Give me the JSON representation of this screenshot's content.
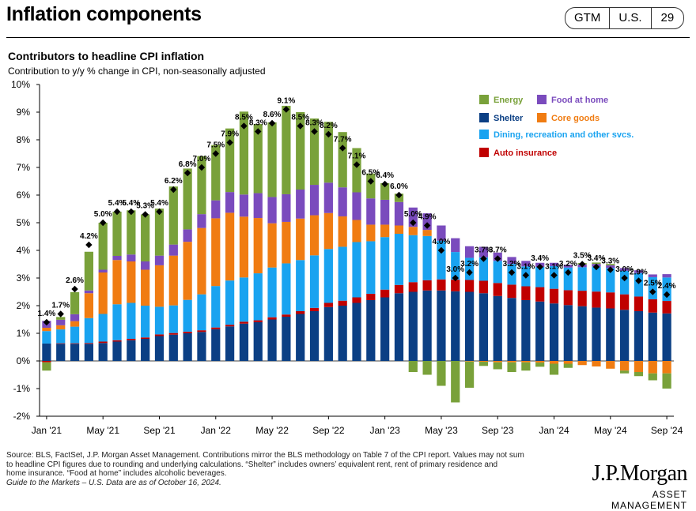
{
  "header": {
    "title": "Inflation components",
    "badges": [
      "GTM",
      "U.S.",
      "29"
    ]
  },
  "chart_heading": {
    "title": "Contributors to headline CPI inflation",
    "subtitle": "Contribution to y/y % change in CPI, non-seasonally adjusted"
  },
  "footnote": {
    "line1": "Source: BLS, FactSet, J.P. Morgan Asset Management. Contributions mirror the BLS methodology on Table 7 of the CPI report. Values may not sum",
    "line2": "to headline CPI figures due to rounding and underlying calculations. “Shelter” includes owners’ equivalent rent, rent of primary residence and",
    "line3": "home insurance. “Food at home” includes alcoholic beverages.",
    "line4": "Guide to the Markets – U.S. Data are as of October 16, 2024."
  },
  "logo": {
    "name": "J.P.Morgan",
    "sub": "ASSET MANAGEMENT"
  },
  "colors": {
    "shelter": "#0b3f84",
    "auto_insurance": "#c00000",
    "dining": "#19a3f0",
    "core_goods": "#f07c12",
    "food_at_home": "#7a4bbd",
    "energy": "#79a13a",
    "marker": "#000000"
  },
  "chart_data": {
    "type": "bar",
    "stacked": true,
    "ylim": [
      -2,
      10
    ],
    "yticks": [
      "-2%",
      "-1%",
      "0%",
      "1%",
      "2%",
      "3%",
      "4%",
      "5%",
      "6%",
      "7%",
      "8%",
      "9%",
      "10%"
    ],
    "xtick_labels": [
      "Jan '21",
      "May '21",
      "Sep '21",
      "Jan '22",
      "May '22",
      "Sep '22",
      "Jan '23",
      "May '23",
      "Sep '23",
      "Jan '24",
      "May '24",
      "Sep '24"
    ],
    "legend_position": "top-right",
    "categories": [
      "Jan '21",
      "Feb '21",
      "Mar '21",
      "Apr '21",
      "May '21",
      "Jun '21",
      "Jul '21",
      "Aug '21",
      "Sep '21",
      "Oct '21",
      "Nov '21",
      "Dec '21",
      "Jan '22",
      "Feb '22",
      "Mar '22",
      "Apr '22",
      "May '22",
      "Jun '22",
      "Jul '22",
      "Aug '22",
      "Sep '22",
      "Oct '22",
      "Nov '22",
      "Dec '22",
      "Jan '23",
      "Feb '23",
      "Mar '23",
      "Apr '23",
      "May '23",
      "Jun '23",
      "Jul '23",
      "Aug '23",
      "Sep '23",
      "Oct '23",
      "Nov '23",
      "Dec '23",
      "Jan '24",
      "Feb '24",
      "Mar '24",
      "Apr '24",
      "May '24",
      "Jun '24",
      "Jul '24",
      "Aug '24",
      "Sep '24"
    ],
    "series": [
      {
        "key": "shelter",
        "name": "Shelter",
        "values": [
          0.63,
          0.62,
          0.62,
          0.62,
          0.65,
          0.7,
          0.75,
          0.8,
          0.9,
          0.95,
          1.0,
          1.05,
          1.15,
          1.25,
          1.35,
          1.4,
          1.5,
          1.6,
          1.7,
          1.8,
          1.95,
          2.0,
          2.1,
          2.2,
          2.3,
          2.45,
          2.5,
          2.55,
          2.55,
          2.52,
          2.5,
          2.45,
          2.35,
          2.28,
          2.2,
          2.15,
          2.08,
          2.02,
          1.98,
          1.93,
          1.9,
          1.85,
          1.8,
          1.75,
          1.72
        ]
      },
      {
        "key": "auto_insurance",
        "name": "Auto insurance",
        "values": [
          -0.05,
          0.02,
          0.02,
          0.03,
          0.05,
          0.05,
          0.05,
          0.05,
          0.06,
          0.06,
          0.06,
          0.06,
          0.06,
          0.06,
          0.07,
          0.07,
          0.08,
          0.08,
          0.1,
          0.12,
          0.15,
          0.18,
          0.2,
          0.23,
          0.28,
          0.3,
          0.35,
          0.37,
          0.4,
          0.42,
          0.43,
          0.45,
          0.47,
          0.48,
          0.5,
          0.52,
          0.53,
          0.54,
          0.56,
          0.58,
          0.58,
          0.56,
          0.53,
          0.48,
          0.45
        ]
      },
      {
        "key": "dining",
        "name": "Dining, recreation and other svcs.",
        "values": [
          0.45,
          0.5,
          0.6,
          0.9,
          1.0,
          1.3,
          1.3,
          1.15,
          1.0,
          1.0,
          1.15,
          1.3,
          1.5,
          1.6,
          1.6,
          1.7,
          1.8,
          1.85,
          1.85,
          1.9,
          1.95,
          1.95,
          2.0,
          1.9,
          1.9,
          1.85,
          1.7,
          1.6,
          1.4,
          1.0,
          0.8,
          0.85,
          0.8,
          0.75,
          0.72,
          0.73,
          0.82,
          0.82,
          0.85,
          0.9,
          0.88,
          0.85,
          0.85,
          0.8,
          0.85
        ]
      },
      {
        "key": "core_goods",
        "name": "Core goods",
        "values": [
          0.12,
          0.15,
          0.2,
          0.9,
          1.5,
          1.6,
          1.5,
          1.3,
          1.5,
          1.8,
          2.1,
          2.4,
          2.45,
          2.45,
          2.2,
          2.0,
          1.6,
          1.5,
          1.5,
          1.45,
          1.3,
          1.1,
          0.8,
          0.6,
          0.45,
          0.3,
          0.3,
          0.22,
          0.0,
          0.0,
          -0.02,
          -0.03,
          -0.05,
          -0.05,
          -0.05,
          -0.06,
          -0.1,
          -0.1,
          -0.15,
          -0.2,
          -0.28,
          -0.35,
          -0.4,
          -0.45,
          -0.45
        ]
      },
      {
        "key": "food_at_home",
        "name": "Food at home",
        "values": [
          0.25,
          0.2,
          0.25,
          0.1,
          0.1,
          0.15,
          0.25,
          0.3,
          0.35,
          0.4,
          0.45,
          0.5,
          0.65,
          0.75,
          0.8,
          0.9,
          0.95,
          1.0,
          1.05,
          1.1,
          1.1,
          1.05,
          1.0,
          0.95,
          0.9,
          0.85,
          0.7,
          0.6,
          0.55,
          0.5,
          0.42,
          0.38,
          0.3,
          0.25,
          0.2,
          0.15,
          0.12,
          0.1,
          0.1,
          0.1,
          0.1,
          0.1,
          0.1,
          0.1,
          0.12
        ]
      },
      {
        "key": "energy",
        "name": "Energy",
        "values": [
          -0.3,
          0.1,
          0.8,
          1.4,
          1.7,
          1.6,
          1.6,
          1.7,
          1.7,
          2.1,
          2.2,
          2.1,
          2.0,
          2.3,
          3.0,
          2.5,
          2.7,
          3.2,
          2.8,
          2.4,
          2.2,
          2.0,
          1.6,
          0.9,
          0.6,
          0.3,
          -0.4,
          -0.5,
          -0.9,
          -1.5,
          -0.95,
          -0.15,
          -0.25,
          -0.35,
          -0.3,
          -0.15,
          -0.4,
          -0.15,
          0.05,
          0.05,
          0.05,
          -0.1,
          -0.15,
          -0.25,
          -0.55
        ]
      }
    ],
    "headline": {
      "name": "Headline CPI",
      "values": [
        1.4,
        1.7,
        2.6,
        4.2,
        5.0,
        5.4,
        5.4,
        5.3,
        5.4,
        6.2,
        6.8,
        7.0,
        7.5,
        7.9,
        8.5,
        8.3,
        8.6,
        9.1,
        8.5,
        8.3,
        8.2,
        7.7,
        7.1,
        6.5,
        6.4,
        6.0,
        5.0,
        4.9,
        4.0,
        3.0,
        3.2,
        3.7,
        3.7,
        3.2,
        3.1,
        3.4,
        3.1,
        3.2,
        3.5,
        3.4,
        3.3,
        3.0,
        2.9,
        2.5,
        2.4
      ],
      "labels": [
        "1.4%",
        "1.7%",
        "2.6%",
        "4.2%",
        "5.0%",
        "5.4%",
        "5.4%",
        "5.3%",
        "5.4%",
        "6.2%",
        "6.8%",
        "7.0%",
        "7.5%",
        "7.9%",
        "8.5%",
        "8.3%",
        "8.6%",
        "9.1%",
        "8.5%",
        "8.3%",
        "8.2%",
        "7.7%",
        "7.1%",
        "6.5%",
        "6.4%",
        "6.0%",
        "5.0%",
        "4.9%",
        "4.0%",
        "3.0%",
        "3.2%",
        "3.7%",
        "3.7%",
        "3.2%",
        "3.1%",
        "3.4%",
        "3.1%",
        "3.2%",
        "3.5%",
        "3.4%",
        "3.3%",
        "3.0%",
        "2.9%",
        "2.5%",
        "2.4%"
      ]
    },
    "legend": [
      {
        "key": "energy",
        "label": "Energy"
      },
      {
        "key": "food_at_home",
        "label": "Food  at home"
      },
      {
        "key": "shelter",
        "label": "Shelter"
      },
      {
        "key": "core_goods",
        "label": "Core goods"
      },
      {
        "key": "dining",
        "label": "Dining,  recreation and other svcs."
      },
      {
        "key": "auto_insurance",
        "label": "Auto insurance"
      }
    ]
  }
}
